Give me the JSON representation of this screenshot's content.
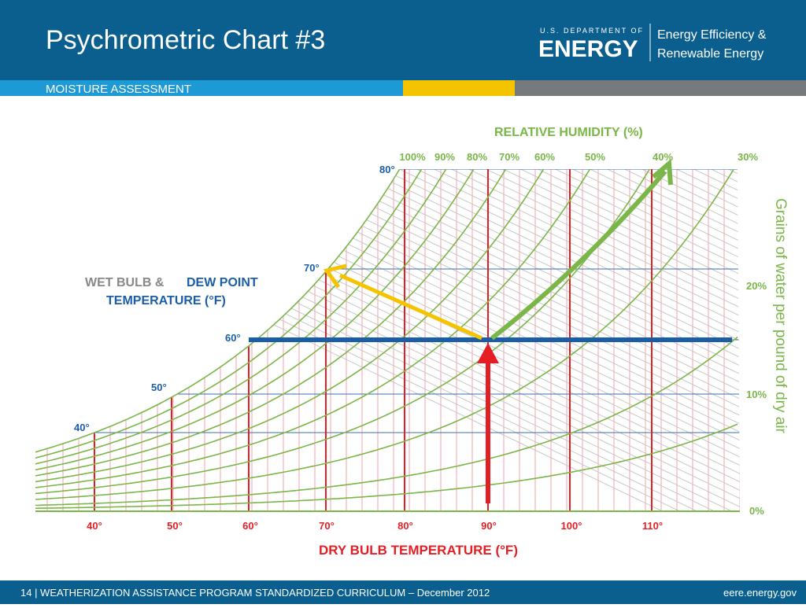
{
  "header": {
    "title": "Psychrometric Chart #3",
    "section": "MOISTURE ASSESSMENT",
    "logo": {
      "agency": "U.S. DEPARTMENT OF",
      "name": "ENERGY",
      "office_line1": "Energy Efficiency &",
      "office_line2": "Renewable Energy"
    }
  },
  "diagram": {
    "rh_title": "RELATIVE HUMIDITY (%)",
    "rh_labels": [
      "100%",
      "90%",
      "80%",
      "70%",
      "60%",
      "50%",
      "40%",
      "30%"
    ],
    "wet_bulb_title": {
      "part1": "WET BULB &",
      "part2": "DEW POINT",
      "part3": "TEMPERATURE (°F)"
    },
    "wet_bulb_labels": [
      "80°",
      "70°",
      "60°",
      "50°",
      "40°"
    ],
    "dry_bulb_labels": [
      "40°",
      "50°",
      "60°",
      "70°",
      "80°",
      "90°",
      "100°",
      "110°"
    ],
    "dry_bulb_title": "DRY BULB TEMPERATURE (°F)",
    "grains_title": "Grains of water per pound of dry air",
    "grains_labels": [
      "20%",
      "10%",
      "0%"
    ]
  },
  "footer": {
    "text": "14 | WEATHERIZATION ASSISTANCE PROGRAM STANDARDIZED CURRICULUM – December 2012",
    "site": "eere.energy.gov"
  }
}
